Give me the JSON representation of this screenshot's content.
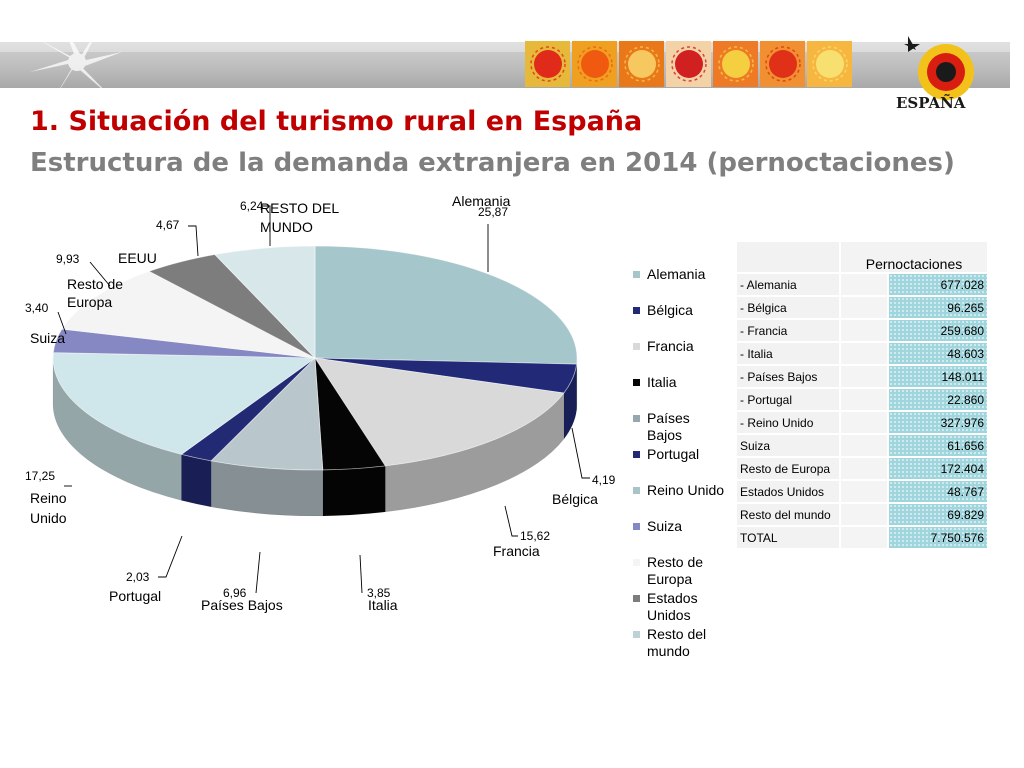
{
  "title": "1. Situación del turismo rural en España",
  "subtitle": "Estructura de la demanda extranjera en 2014 (pernoctaciones)",
  "logo": {
    "text": "ESPAÑA",
    "icon": "espana-sun-logo"
  },
  "banner": {
    "icon": "star-flower-icon",
    "tiles": [
      {
        "name": "red-sun-tile",
        "bg": "#e6b93a",
        "fg": "#e02a1a"
      },
      {
        "name": "orange-sun-tile",
        "bg": "#f0a020",
        "fg": "#f05a10"
      },
      {
        "name": "hand-sun-tile",
        "bg": "#e87818",
        "fg": "#f8c860"
      },
      {
        "name": "bug-tile",
        "bg": "#f4d2a8",
        "fg": "#d02020"
      },
      {
        "name": "square-sun-tile",
        "bg": "#ee7a28",
        "fg": "#f4d040"
      },
      {
        "name": "circle-sun-tile",
        "bg": "#f09030",
        "fg": "#e03018"
      },
      {
        "name": "spiral-sun-tile",
        "bg": "#f6b640",
        "fg": "#f8e070"
      }
    ]
  },
  "chart_data": {
    "type": "pie",
    "title": "",
    "categories": [
      "Alemania",
      "Bélgica",
      "Francia",
      "Italia",
      "Países Bajos",
      "Portugal",
      "Reino Unido",
      "Suiza",
      "Resto de Europa",
      "EEUU",
      "RESTO DEL MUNDO"
    ],
    "values": [
      25.87,
      4.19,
      15.62,
      3.85,
      6.96,
      2.03,
      17.25,
      3.4,
      9.93,
      4.67,
      6.24
    ],
    "value_labels": [
      "25,87",
      "4,19",
      "15,62",
      "3,85",
      "6,96",
      "2,03",
      "17,25",
      "3,40",
      "9,93",
      "4,67",
      "6,24"
    ],
    "colors": [
      "#a5c6ca",
      "#222a78",
      "#d9d9d9",
      "#050505",
      "#b9c7cd",
      "#232a74",
      "#cfe6eb",
      "#8588c2",
      "#f4f4f4",
      "#7d7d7d",
      "#d8e8ea"
    ],
    "legend": {
      "position": "right",
      "entries": [
        "Alemania",
        "Bélgica",
        "Francia",
        "Italia",
        "Países Bajos",
        "Portugal",
        "Reino Unido",
        "Suiza",
        "Resto de Europa",
        "Estados Unidos",
        "Resto del mundo"
      ]
    }
  },
  "table": {
    "header": "Pernoctaciones",
    "rows": [
      {
        "name": "- Alemania",
        "value": "677.028"
      },
      {
        "name": "- Bélgica",
        "value": "96.265"
      },
      {
        "name": "- Francia",
        "value": "259.680"
      },
      {
        "name": "- Italia",
        "value": "48.603"
      },
      {
        "name": "- Países Bajos",
        "value": "148.011"
      },
      {
        "name": "- Portugal",
        "value": "22.860"
      },
      {
        "name": "- Reino Unido",
        "value": "327.976"
      },
      {
        "name": "Suiza",
        "value": "61.656"
      },
      {
        "name": "Resto de Europa",
        "value": "172.404"
      },
      {
        "name": "Estados Unidos",
        "value": "48.767"
      },
      {
        "name": "Resto del mundo",
        "value": "69.829"
      },
      {
        "name": "TOTAL",
        "value": "7.750.576"
      }
    ]
  }
}
